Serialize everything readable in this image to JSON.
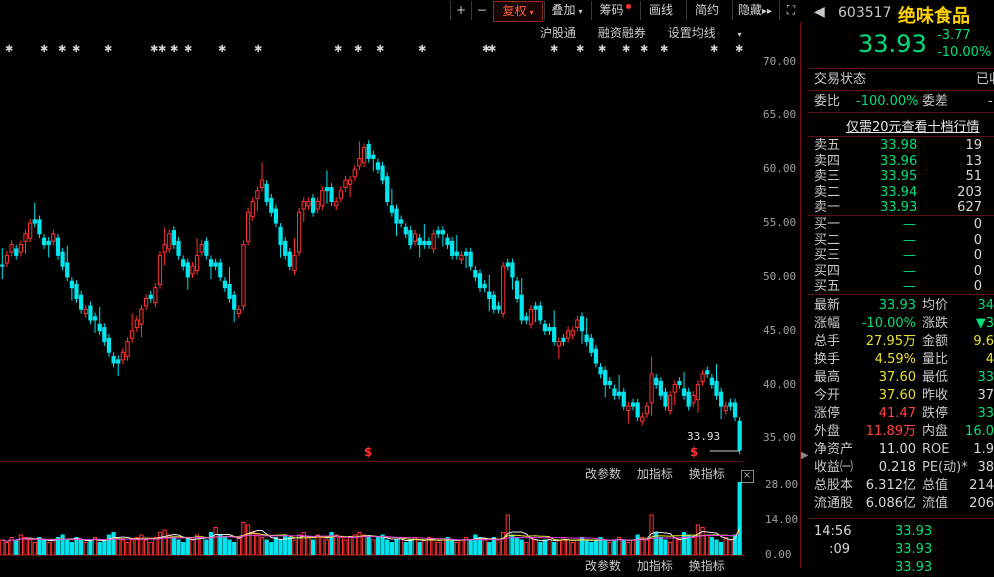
{
  "toolbar": {
    "plus": "+",
    "minus": "−",
    "restore_rights": "复权",
    "overlay": "叠加",
    "chips": "筹码",
    "draw_line": "画线",
    "simple_contract": "简约",
    "hide": "隐藏",
    "hide_arrow": "▸▸",
    "fullscreen": "⛶"
  },
  "subbar": {
    "hgt": "沪股通",
    "margin": "融资融券",
    "ma_settings": "设置均线"
  },
  "price_axis": [
    "70.00",
    "65.00",
    "60.00",
    "55.00",
    "50.00",
    "45.00",
    "40.00",
    "35.00"
  ],
  "last_price_tag": "33.93",
  "event_marker": "$",
  "volume_axis": [
    "28.00",
    "14.00",
    "0.00"
  ],
  "indicator_bar": {
    "change_params": "改参数",
    "add_indicator": "加指标",
    "switch_indicator": "换指标",
    "close": "×"
  },
  "quote": {
    "code": "603517",
    "name": "绝味食品",
    "price": "33.93",
    "change": "-3.77",
    "change_pct": "-10.00%",
    "trade_status_label": "交易状态",
    "trade_status_value": "已收",
    "commission_ratio_label": "委比",
    "commission_ratio": "-100.00%",
    "commission_diff_label": "委差",
    "commission_diff": "-",
    "promo": "仅需20元查看十档行情"
  },
  "asks": [
    {
      "label": "卖五",
      "price": "33.98",
      "vol": "19"
    },
    {
      "label": "卖四",
      "price": "33.96",
      "vol": "13"
    },
    {
      "label": "卖三",
      "price": "33.95",
      "vol": "51"
    },
    {
      "label": "卖二",
      "price": "33.94",
      "vol": "203"
    },
    {
      "label": "卖一",
      "price": "33.93",
      "vol": "627"
    }
  ],
  "bids": [
    {
      "label": "买一",
      "price": "—",
      "vol": "0"
    },
    {
      "label": "买二",
      "price": "—",
      "vol": "0"
    },
    {
      "label": "买三",
      "price": "—",
      "vol": "0"
    },
    {
      "label": "买四",
      "price": "—",
      "vol": "0"
    },
    {
      "label": "买五",
      "price": "—",
      "vol": "0"
    }
  ],
  "stats": [
    {
      "l1": "最新",
      "v1": "33.93",
      "c1": "g",
      "l2": "均价",
      "v2": "34",
      "c2": "g"
    },
    {
      "l1": "涨幅",
      "v1": "-10.00%",
      "c1": "g",
      "l2": "涨跌",
      "v2": "▼3",
      "c2": "g"
    },
    {
      "l1": "总手",
      "v1": "27.95万",
      "c1": "y",
      "l2": "金额",
      "v2": "9.6",
      "c2": "y"
    },
    {
      "l1": "换手",
      "v1": "4.59%",
      "c1": "y",
      "l2": "量比",
      "v2": "4",
      "c2": "y"
    },
    {
      "l1": "最高",
      "v1": "37.60",
      "c1": "y",
      "l2": "最低",
      "v2": "33",
      "c2": "g"
    },
    {
      "l1": "今开",
      "v1": "37.60",
      "c1": "y",
      "l2": "昨收",
      "v2": "37",
      "c2": "w"
    },
    {
      "l1": "涨停",
      "v1": "41.47",
      "c1": "r",
      "l2": "跌停",
      "v2": "33",
      "c2": "g"
    },
    {
      "l1": "外盘",
      "v1": "11.89万",
      "c1": "r",
      "l2": "内盘",
      "v2": "16.0",
      "c2": "g"
    },
    {
      "l1": "净资产",
      "v1": "11.00",
      "c1": "w",
      "l2": "ROE",
      "v2": "1.9",
      "c2": "w"
    },
    {
      "l1": "收益㈠",
      "v1": "0.218",
      "c1": "w",
      "l2": "PE(动)*",
      "v2": "38",
      "c2": "w"
    },
    {
      "l1": "总股本",
      "v1": "6.312亿",
      "c1": "w",
      "l2": "总值",
      "v2": "214",
      "c2": "w"
    },
    {
      "l1": "流通股",
      "v1": "6.086亿",
      "c1": "w",
      "l2": "流值",
      "v2": "206",
      "c2": "w"
    }
  ],
  "ticks": [
    {
      "time": "14:56",
      "price": "33.93"
    },
    {
      "time": ":09",
      "price": "33.93"
    },
    {
      "time": "",
      "price": "33.93"
    }
  ],
  "chart_data": {
    "type": "candlestick",
    "ylim": [
      33,
      72
    ],
    "y_ticks": [
      35,
      40,
      45,
      50,
      55,
      60,
      65,
      70
    ],
    "close": [
      51,
      52,
      53,
      52,
      53,
      54,
      55,
      55,
      54,
      53,
      53,
      54,
      52,
      51,
      50,
      49,
      48,
      47,
      47,
      46,
      46,
      45,
      44,
      43,
      42,
      42,
      43,
      44,
      45,
      46,
      47,
      48,
      48,
      49,
      52,
      53,
      54,
      53,
      52,
      51,
      50,
      51,
      52,
      53,
      52,
      51,
      51,
      50,
      49,
      48,
      47,
      47,
      53,
      56,
      57,
      58,
      59,
      57,
      56,
      55,
      53,
      52,
      51,
      52,
      56,
      57,
      57,
      56,
      57,
      58,
      58,
      57,
      57,
      58,
      59,
      59,
      60,
      61,
      62,
      61,
      61,
      60,
      59,
      57,
      56,
      55,
      55,
      54,
      53,
      54,
      53,
      53,
      53,
      54,
      54,
      54,
      53,
      52,
      52,
      52,
      52,
      51,
      50,
      49,
      49,
      48,
      47,
      47,
      51,
      51,
      50,
      48,
      46,
      46,
      47,
      47,
      46,
      45,
      45,
      44,
      44,
      44,
      45,
      45,
      46,
      45,
      44,
      43,
      42,
      41,
      40,
      40,
      39,
      39,
      38,
      38,
      38,
      37,
      37,
      38,
      41,
      40,
      39,
      38,
      39,
      40,
      40,
      39,
      38,
      39,
      40,
      41,
      41,
      40,
      39,
      38,
      38,
      38,
      37,
      33.93
    ],
    "volume": [
      6,
      5,
      7,
      6,
      8,
      7,
      6,
      5,
      7,
      6,
      5,
      6,
      7,
      8,
      6,
      5,
      7,
      6,
      5,
      6,
      7,
      5,
      6,
      8,
      9,
      7,
      6,
      5,
      6,
      7,
      8,
      6,
      5,
      7,
      9,
      10,
      8,
      7,
      6,
      5,
      7,
      6,
      8,
      7,
      6,
      9,
      11,
      8,
      7,
      6,
      5,
      7,
      13,
      12,
      9,
      8,
      7,
      6,
      5,
      7,
      6,
      8,
      7,
      6,
      8,
      9,
      7,
      6,
      8,
      7,
      6,
      9,
      8,
      7,
      6,
      7,
      8,
      9,
      8,
      7,
      6,
      7,
      8,
      6,
      5,
      6,
      7,
      5,
      6,
      7,
      5,
      6,
      7,
      6,
      5,
      6,
      7,
      6,
      5,
      6,
      7,
      6,
      8,
      7,
      6,
      5,
      7,
      6,
      9,
      16,
      8,
      7,
      6,
      5,
      7,
      6,
      5,
      6,
      7,
      5,
      6,
      7,
      6,
      5,
      6,
      7,
      6,
      5,
      6,
      7,
      6,
      5,
      6,
      7,
      6,
      5,
      6,
      8,
      7,
      6,
      16,
      9,
      7,
      6,
      5,
      7,
      6,
      9,
      8,
      7,
      12,
      11,
      8,
      7,
      6,
      5,
      7,
      6,
      8,
      29
    ],
    "volume_ylim": [
      0,
      30
    ],
    "volume_ticks": [
      0,
      14,
      28
    ]
  }
}
